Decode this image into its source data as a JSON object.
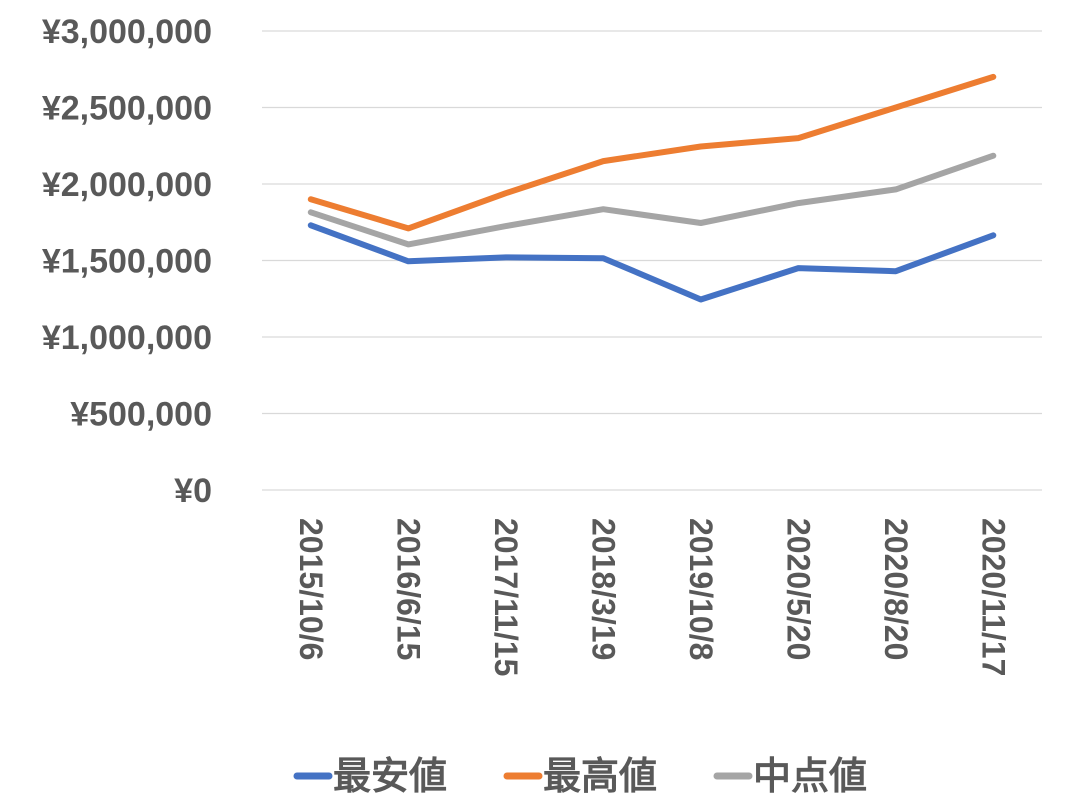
{
  "chart_data": {
    "type": "line",
    "title": "",
    "xlabel": "",
    "ylabel": "",
    "ylim": [
      0,
      3000000
    ],
    "grid": true,
    "legend_position": "bottom",
    "y_ticks": [
      {
        "value": 0,
        "label": "¥0"
      },
      {
        "value": 500000,
        "label": "¥500,000"
      },
      {
        "value": 1000000,
        "label": "¥1,000,000"
      },
      {
        "value": 1500000,
        "label": "¥1,500,000"
      },
      {
        "value": 2000000,
        "label": "¥2,000,000"
      },
      {
        "value": 2500000,
        "label": "¥2,500,000"
      },
      {
        "value": 3000000,
        "label": "¥3,000,000"
      }
    ],
    "categories": [
      "2015/10/6",
      "2016/6/15",
      "2017/11/15",
      "2018/3/19",
      "2019/10/8",
      "2020/5/20",
      "2020/8/20",
      "2020/11/17"
    ],
    "series": [
      {
        "name": "最安値",
        "color": "#4472c4",
        "values": [
          1730000,
          1495000,
          1520000,
          1515000,
          1245000,
          1450000,
          1430000,
          1665000
        ]
      },
      {
        "name": "最高値",
        "color": "#ed7d31",
        "values": [
          1900000,
          1710000,
          1940000,
          2150000,
          2245000,
          2300000,
          2500000,
          2700000
        ]
      },
      {
        "name": "中点値",
        "color": "#a5a5a5",
        "values": [
          1815000,
          1605000,
          1725000,
          1835000,
          1745000,
          1875000,
          1965000,
          2185000
        ]
      }
    ]
  }
}
